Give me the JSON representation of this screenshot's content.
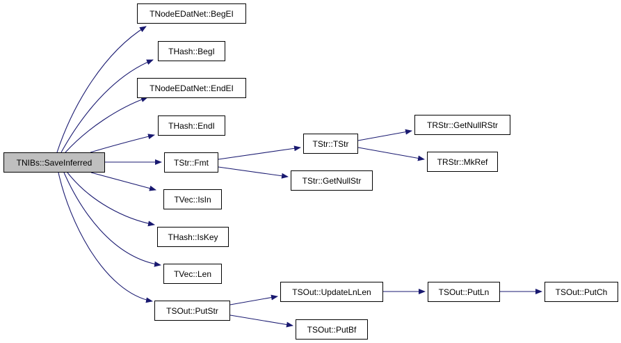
{
  "graph": {
    "edge_color": "#191970",
    "root_fill": "#bfbfbf",
    "nodes": {
      "root": "TNIBs::SaveInferred",
      "begel": "TNodeEDatNet::BegEI",
      "begi": "THash::BegI",
      "endel": "TNodeEDatNet::EndEI",
      "endi": "THash::EndI",
      "fmt": "TStr::Fmt",
      "isin": "TVec::IsIn",
      "iskey": "THash::IsKey",
      "len": "TVec::Len",
      "putstr": "TSOut::PutStr",
      "tstr": "TStr::TStr",
      "getnullstr": "TStr::GetNullStr",
      "getnullrstr": "TRStr::GetNullRStr",
      "mkref": "TRStr::MkRef",
      "updatelnlen": "TSOut::UpdateLnLen",
      "putln": "TSOut::PutLn",
      "putch": "TSOut::PutCh",
      "putbf": "TSOut::PutBf"
    },
    "edges": [
      [
        "root",
        "begel"
      ],
      [
        "root",
        "begi"
      ],
      [
        "root",
        "endel"
      ],
      [
        "root",
        "endi"
      ],
      [
        "root",
        "fmt"
      ],
      [
        "root",
        "isin"
      ],
      [
        "root",
        "iskey"
      ],
      [
        "root",
        "len"
      ],
      [
        "root",
        "putstr"
      ],
      [
        "fmt",
        "tstr"
      ],
      [
        "fmt",
        "getnullstr"
      ],
      [
        "tstr",
        "getnullrstr"
      ],
      [
        "tstr",
        "mkref"
      ],
      [
        "putstr",
        "updatelnlen"
      ],
      [
        "putstr",
        "putbf"
      ],
      [
        "updatelnlen",
        "putln"
      ],
      [
        "putln",
        "putch"
      ]
    ]
  }
}
